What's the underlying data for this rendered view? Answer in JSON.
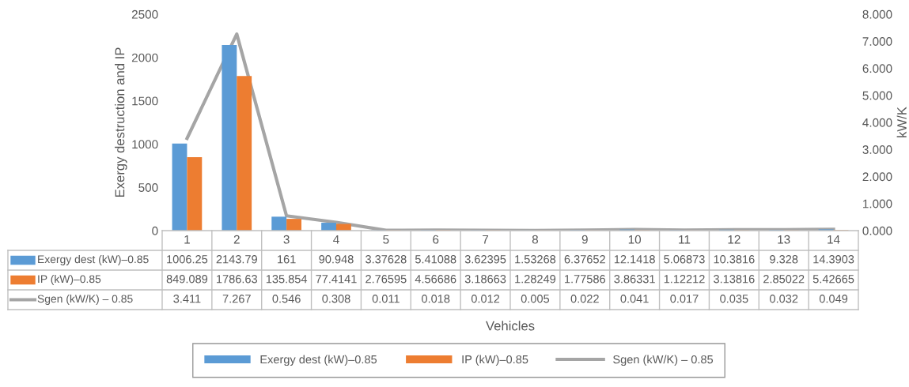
{
  "chart_data": {
    "type": "bar",
    "annotations": [
      "Vehicles"
    ],
    "ylabel": "Exergy destruction and IP",
    "y2label": "kW/K",
    "categories": [
      "1",
      "2",
      "3",
      "4",
      "5",
      "6",
      "7",
      "8",
      "9",
      "10",
      "11",
      "12",
      "13",
      "14"
    ],
    "series": [
      {
        "name": "Exergy dest (kW)–0.85",
        "color": "#5b9bd5",
        "values": [
          1006.25,
          2143.79,
          161,
          90.948,
          3.37628,
          5.41088,
          3.62395,
          1.53268,
          6.37652,
          12.1418,
          5.06873,
          10.3816,
          9.328,
          14.3903
        ]
      },
      {
        "name": "IP (kW)–0.85",
        "color": "#ed7d31",
        "values": [
          849.089,
          1786.63,
          135.854,
          77.4141,
          2.76595,
          4.56686,
          3.18663,
          1.28249,
          1.77586,
          3.86331,
          1.12212,
          3.13816,
          2.85022,
          5.42665
        ]
      },
      {
        "name": "Sgen (kW/K) – 0.85",
        "color": "#a5a5a5",
        "type": "line",
        "axis": "y2",
        "values": [
          3.411,
          7.267,
          0.546,
          0.308,
          0.011,
          0.018,
          0.012,
          0.005,
          0.022,
          0.041,
          0.017,
          0.035,
          0.032,
          0.049
        ]
      }
    ],
    "ylim": [
      0,
      2500
    ],
    "yticks": [
      0,
      500,
      1000,
      1500,
      2000,
      2500
    ],
    "y2lim": [
      0,
      8
    ],
    "y2ticks": [
      {
        "value": 0,
        "label": "0.000"
      },
      {
        "value": 1,
        "label": "1.000"
      },
      {
        "value": 2,
        "label": "2.000"
      },
      {
        "value": 3,
        "label": "3.000"
      },
      {
        "value": 4,
        "label": "4.000"
      },
      {
        "value": 5,
        "label": "5.000"
      },
      {
        "value": 6,
        "label": "6.000"
      },
      {
        "value": 7,
        "label": "7.000"
      },
      {
        "value": 8,
        "label": "8.000"
      }
    ],
    "data_labels": true,
    "legend": "bottom",
    "grid": false,
    "marker": "none"
  }
}
